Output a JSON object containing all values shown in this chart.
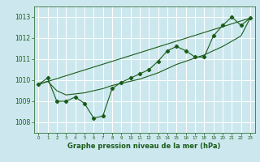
{
  "title": "",
  "xlabel": "Graphe pression niveau de la mer (hPa)",
  "bg_color": "#cce8ee",
  "grid_color": "#ffffff",
  "line_color": "#1a5c1a",
  "xlim": [
    -0.5,
    23.5
  ],
  "ylim": [
    1007.5,
    1013.5
  ],
  "yticks": [
    1008,
    1009,
    1010,
    1011,
    1012,
    1013
  ],
  "xticks": [
    0,
    1,
    2,
    3,
    4,
    5,
    6,
    7,
    8,
    9,
    10,
    11,
    12,
    13,
    14,
    15,
    16,
    17,
    18,
    19,
    20,
    21,
    22,
    23
  ],
  "series1": {
    "x": [
      0,
      1,
      2,
      3,
      4,
      5,
      6,
      7,
      8,
      9,
      10,
      11,
      12,
      13,
      14,
      15,
      16,
      17,
      18,
      19,
      20,
      21,
      22,
      23
    ],
    "y": [
      1009.8,
      1010.1,
      1009.0,
      1009.0,
      1009.2,
      1008.9,
      1008.2,
      1008.3,
      1009.6,
      1009.9,
      1010.1,
      1010.3,
      1010.5,
      1010.9,
      1011.4,
      1011.6,
      1011.4,
      1011.1,
      1011.1,
      1012.1,
      1012.6,
      1013.0,
      1012.6,
      1012.95
    ]
  },
  "series2": {
    "x": [
      0,
      1,
      2,
      3,
      4,
      5,
      6,
      7,
      8,
      9,
      10,
      11,
      12,
      13,
      14,
      15,
      16,
      17,
      18,
      19,
      20,
      21,
      22,
      23
    ],
    "y": [
      1009.8,
      1009.95,
      1009.5,
      1009.3,
      1009.35,
      1009.4,
      1009.5,
      1009.6,
      1009.75,
      1009.85,
      1009.95,
      1010.05,
      1010.2,
      1010.35,
      1010.55,
      1010.75,
      1010.9,
      1011.05,
      1011.2,
      1011.4,
      1011.6,
      1011.85,
      1012.1,
      1012.95
    ]
  },
  "series3": {
    "x": [
      0,
      23
    ],
    "y": [
      1009.8,
      1012.95
    ]
  },
  "xlabel_fontsize": 6.0,
  "xlabel_fontweight": "bold",
  "ytick_fontsize": 5.5,
  "xtick_fontsize": 4.0
}
